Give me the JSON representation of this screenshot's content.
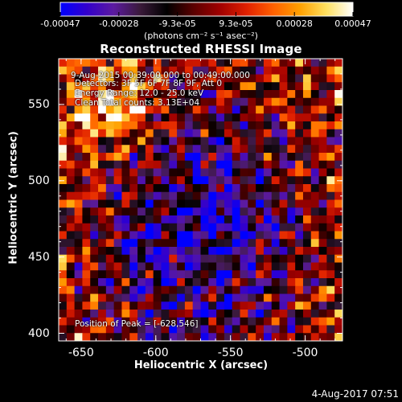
{
  "colorbar": {
    "ticks": [
      "-0.00047",
      "-0.00028",
      "-9.3e-05",
      "9.3e-05",
      "0.00028",
      "0.00047"
    ],
    "units": "(photons cm⁻² s⁻¹ asec⁻²)",
    "colormap": [
      "#0000ff",
      "#3300cc",
      "#5c1aa0",
      "#3a1a3a",
      "#000000",
      "#5a0000",
      "#a00000",
      "#e02000",
      "#ff6000",
      "#ffa000",
      "#ffe060",
      "#ffffff"
    ]
  },
  "chart_data": {
    "type": "heatmap",
    "title": "Reconstructed RHESSI Image",
    "xlabel": "Heliocentric X (arcsec)",
    "ylabel": "Heliocentric Y (arcsec)",
    "xlim": [
      -665,
      -475
    ],
    "ylim": [
      395,
      580
    ],
    "x_ticks": [
      -650,
      -600,
      -550,
      -500
    ],
    "y_ticks": [
      400,
      450,
      500,
      550
    ],
    "x_tick_labels": [
      "-650",
      "-600",
      "-550",
      "-500"
    ],
    "y_tick_labels": [
      "400",
      "450",
      "500",
      "550"
    ],
    "value_range": [
      -0.00047,
      0.00047
    ],
    "annotations": {
      "time": "9-Aug-2015 00:39:00.000 to 00:49:00.000",
      "detectors": "Detectors: 3F 5F 6F 7F 8F 9F, Att 0",
      "energy": "Energy Range: 12.0 - 25.0 keV",
      "clean": "Clean    Total counts: 3.13E+04",
      "peak": "Position of Peak = [-628,546]"
    },
    "peak_position": [
      -628,
      546
    ],
    "grid_cells": [
      36,
      36
    ]
  },
  "footer": {
    "datestamp": "4-Aug-2017 07:51"
  }
}
